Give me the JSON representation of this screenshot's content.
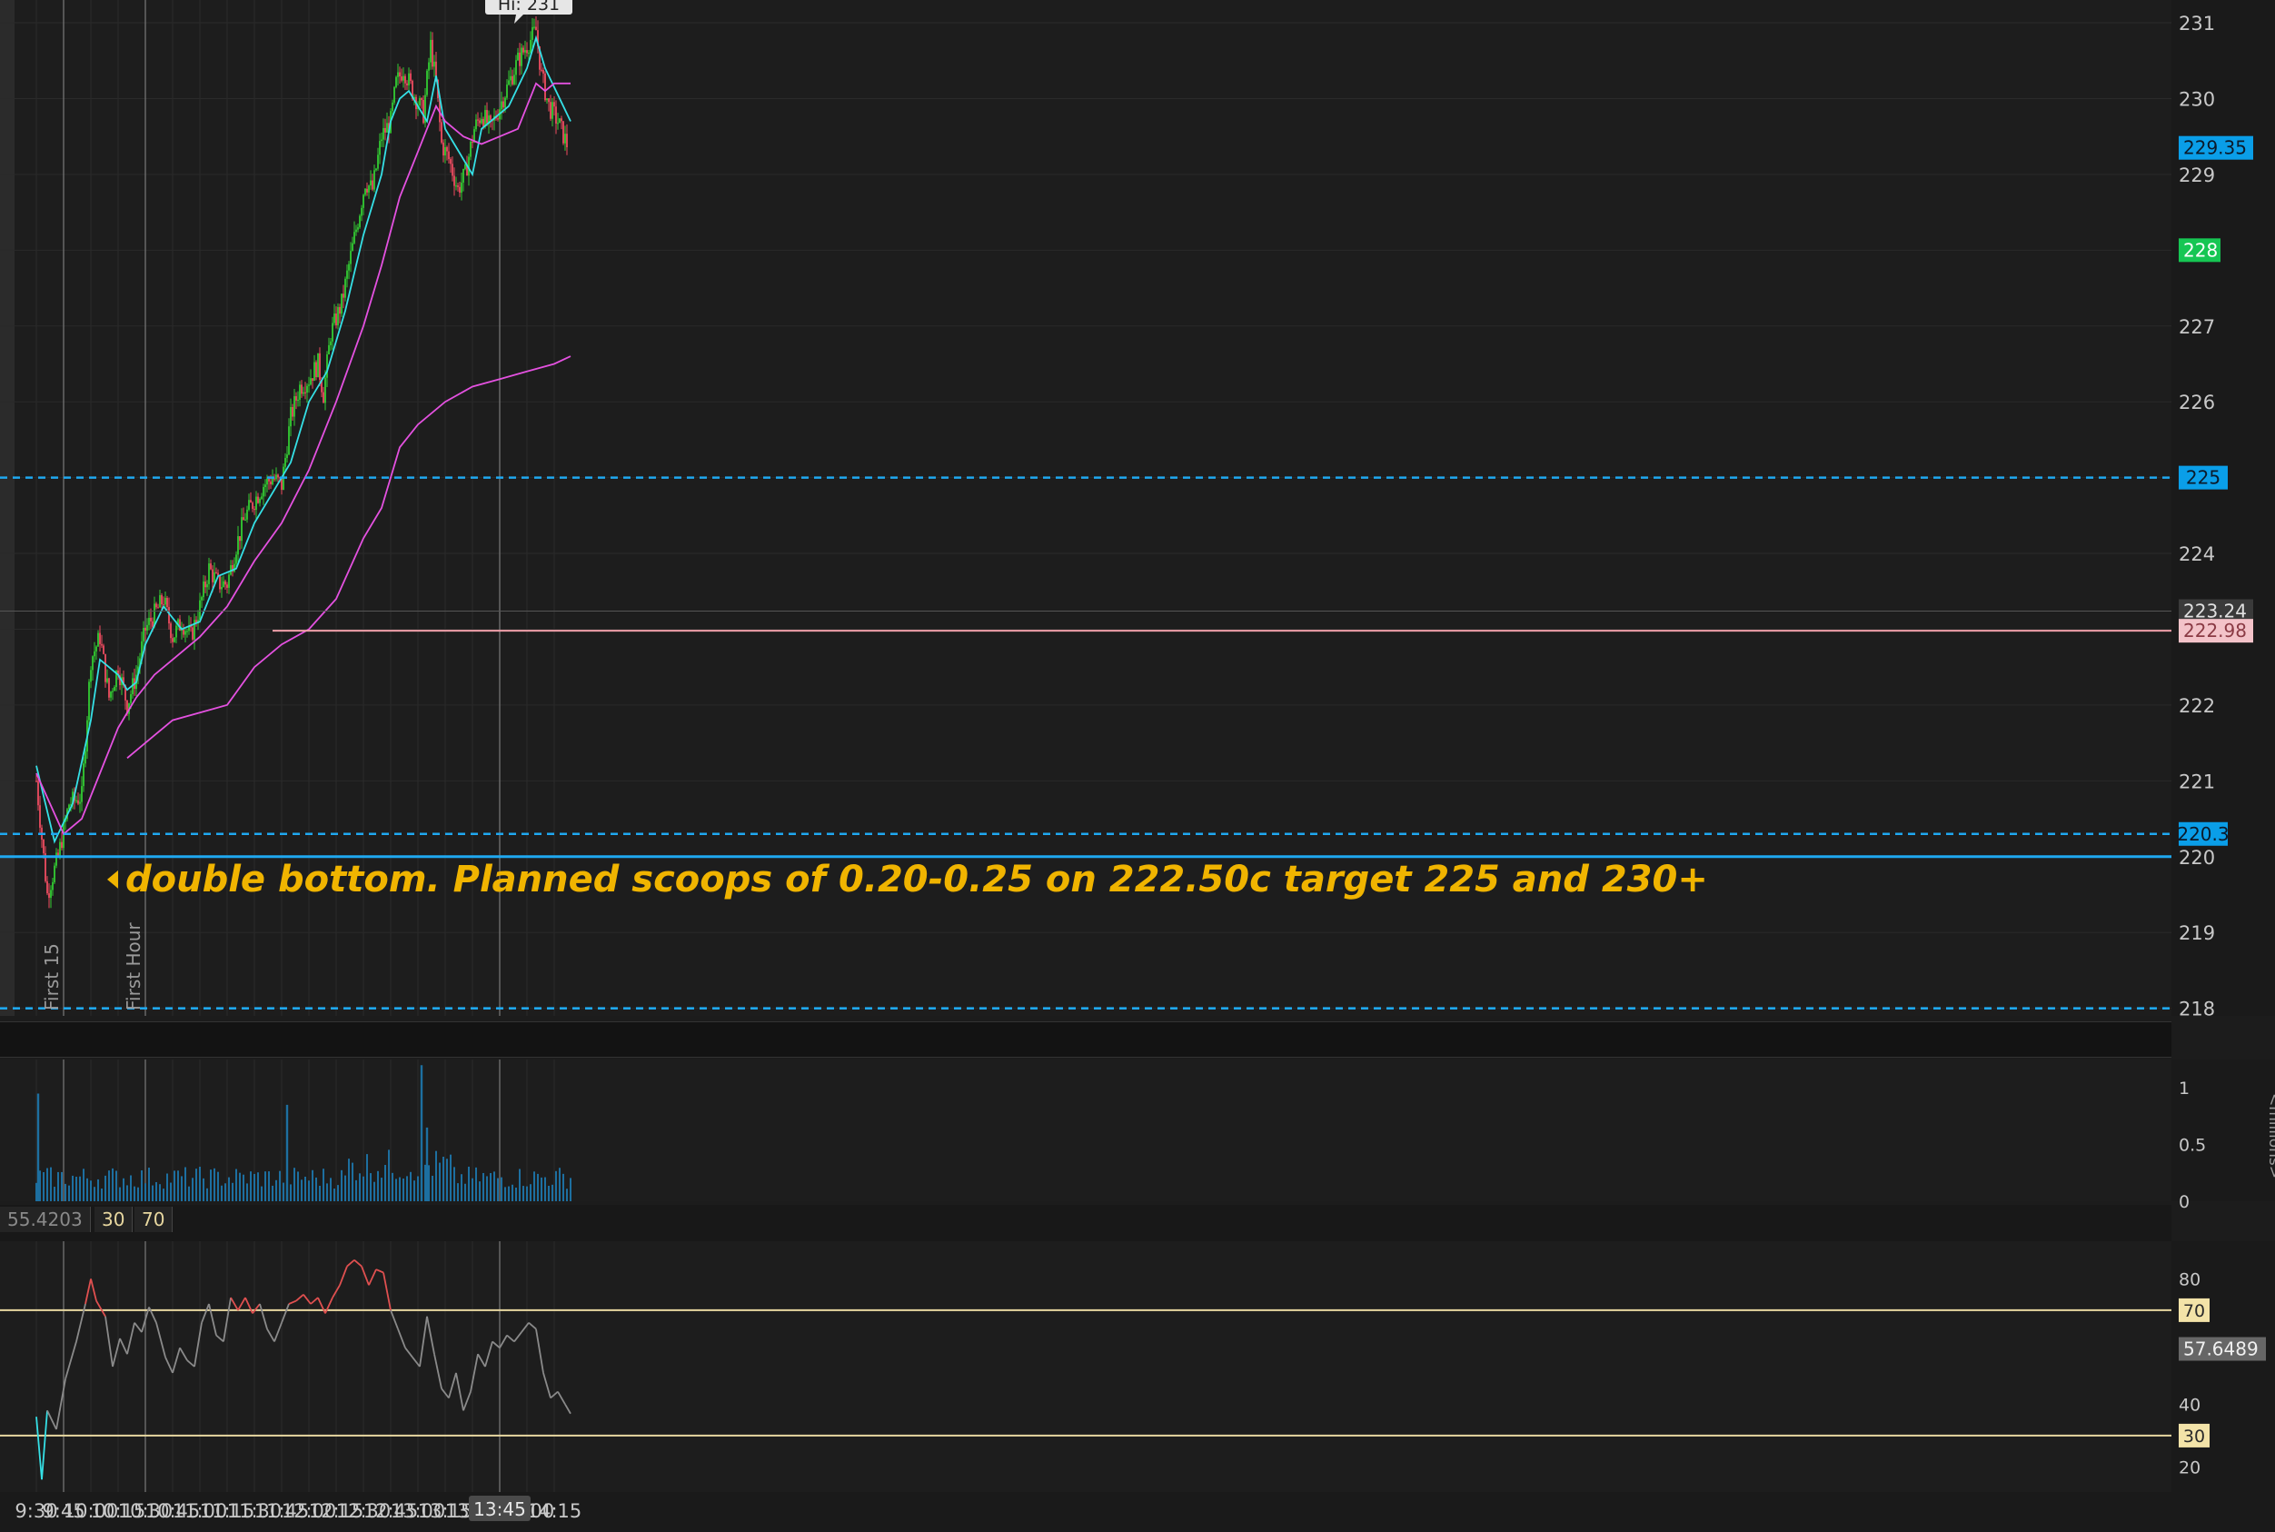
{
  "colors": {
    "background": "#1d1d1d",
    "grid": "#2a2a2a",
    "candle_up": "#33cc33",
    "candle_down": "#ee4c60",
    "ema_fast": "#35e0e6",
    "ema_mid": "#e451e0",
    "ema_slow": "#e451e0",
    "level_line": "#1fa8f0",
    "annotation": "#f0b400",
    "rsi_line": "#8a8a8a",
    "rsi_overbought": "#e05050",
    "rsi_oversold": "#35e0e6",
    "rsi_band": "#e8d8a0",
    "volume_bar": "#1d6fa0",
    "label_current": "#16c653",
    "label_pink": "#f5c0c6"
  },
  "chart_data": [
    {
      "type": "candlestick",
      "panel": "price",
      "ylim": [
        217.9,
        231.3
      ],
      "y_ticks": [
        "231",
        "230",
        "229",
        "228",
        "227",
        "226",
        "225",
        "224",
        "223",
        "222",
        "221",
        "220",
        "219",
        "218"
      ],
      "x_ticks": [
        "9:30",
        "9:45",
        "10:00",
        "10:15",
        "10:30",
        "10:45",
        "11:00",
        "11:15",
        "11:30",
        "11:45",
        "12:00",
        "12:15",
        "12:30",
        "12:45",
        "13:00",
        "13:15",
        "13:30",
        "13:45",
        "14:00",
        "14:15"
      ],
      "session_start": "9:30",
      "bar_minutes": 1,
      "close_path": [
        [
          "9:30",
          221.0
        ],
        [
          "9:36",
          219.5
        ],
        [
          "9:42",
          220.0
        ],
        [
          "9:48",
          220.7
        ],
        [
          "9:55",
          220.8
        ],
        [
          "10:00",
          222.6
        ],
        [
          "10:05",
          222.9
        ],
        [
          "10:10",
          222.1
        ],
        [
          "10:15",
          222.5
        ],
        [
          "10:20",
          222.0
        ],
        [
          "10:25",
          222.4
        ],
        [
          "10:30",
          223.0
        ],
        [
          "10:35",
          223.2
        ],
        [
          "10:40",
          223.4
        ],
        [
          "10:45",
          222.9
        ],
        [
          "10:50",
          223.1
        ],
        [
          "10:55",
          222.9
        ],
        [
          "11:00",
          223.3
        ],
        [
          "11:05",
          223.8
        ],
        [
          "11:10",
          223.6
        ],
        [
          "11:15",
          223.6
        ],
        [
          "11:20",
          224.1
        ],
        [
          "11:25",
          224.5
        ],
        [
          "11:30",
          224.7
        ],
        [
          "11:35",
          224.9
        ],
        [
          "11:40",
          225.0
        ],
        [
          "11:45",
          224.9
        ],
        [
          "11:50",
          225.8
        ],
        [
          "11:55",
          226.2
        ],
        [
          "12:00",
          226.3
        ],
        [
          "12:05",
          226.5
        ],
        [
          "12:08",
          226.1
        ],
        [
          "12:12",
          226.9
        ],
        [
          "12:18",
          227.3
        ],
        [
          "12:22",
          227.8
        ],
        [
          "12:27",
          228.4
        ],
        [
          "12:31",
          228.9
        ],
        [
          "12:35",
          228.8
        ],
        [
          "12:40",
          229.5
        ],
        [
          "12:45",
          229.7
        ],
        [
          "12:48",
          230.2
        ],
        [
          "12:52",
          230.4
        ],
        [
          "12:57",
          230.1
        ],
        [
          "13:03",
          229.8
        ],
        [
          "13:07",
          230.7
        ],
        [
          "13:10",
          230.2
        ],
        [
          "13:13",
          229.4
        ],
        [
          "13:17",
          229.2
        ],
        [
          "13:22",
          228.8
        ],
        [
          "13:26",
          229.0
        ],
        [
          "13:31",
          229.6
        ],
        [
          "13:35",
          229.8
        ],
        [
          "13:40",
          229.6
        ],
        [
          "13:45",
          229.9
        ],
        [
          "13:50",
          230.2
        ],
        [
          "13:55",
          230.5
        ],
        [
          "14:00",
          230.7
        ],
        [
          "14:05",
          230.9
        ],
        [
          "14:08",
          230.3
        ],
        [
          "14:12",
          229.9
        ],
        [
          "14:17",
          229.7
        ],
        [
          "14:22",
          229.4
        ]
      ],
      "series": [
        {
          "name": "",
          "style": "ema-fast",
          "points": [
            [
              "9:30",
              221.2
            ],
            [
              "9:40",
              220.2
            ],
            [
              "9:50",
              220.7
            ],
            [
              "10:00",
              221.8
            ],
            [
              "10:05",
              222.6
            ],
            [
              "10:10",
              222.5
            ],
            [
              "10:15",
              222.4
            ],
            [
              "10:20",
              222.2
            ],
            [
              "10:25",
              222.3
            ],
            [
              "10:30",
              222.8
            ],
            [
              "10:40",
              223.3
            ],
            [
              "10:50",
              223.0
            ],
            [
              "11:00",
              223.1
            ],
            [
              "11:10",
              223.7
            ],
            [
              "11:20",
              223.8
            ],
            [
              "11:30",
              224.4
            ],
            [
              "11:40",
              224.8
            ],
            [
              "11:50",
              225.2
            ],
            [
              "12:00",
              226.0
            ],
            [
              "12:10",
              226.4
            ],
            [
              "12:20",
              227.2
            ],
            [
              "12:30",
              228.2
            ],
            [
              "12:40",
              229.0
            ],
            [
              "12:45",
              229.7
            ],
            [
              "12:50",
              230.0
            ],
            [
              "12:55",
              230.1
            ],
            [
              "13:00",
              229.9
            ],
            [
              "13:05",
              229.7
            ],
            [
              "13:10",
              230.3
            ],
            [
              "13:15",
              229.6
            ],
            [
              "13:20",
              229.4
            ],
            [
              "13:30",
              229.0
            ],
            [
              "13:35",
              229.6
            ],
            [
              "13:40",
              229.7
            ],
            [
              "13:50",
              229.9
            ],
            [
              "14:00",
              230.4
            ],
            [
              "14:05",
              230.8
            ],
            [
              "14:10",
              230.4
            ],
            [
              "14:20",
              229.9
            ],
            [
              "14:24",
              229.7
            ]
          ]
        },
        {
          "name": "",
          "style": "ema-mid",
          "points": [
            [
              "9:30",
              221.1
            ],
            [
              "9:45",
              220.3
            ],
            [
              "9:55",
              220.5
            ],
            [
              "10:05",
              221.1
            ],
            [
              "10:15",
              221.7
            ],
            [
              "10:25",
              222.1
            ],
            [
              "10:35",
              222.4
            ],
            [
              "10:45",
              222.6
            ],
            [
              "11:00",
              222.9
            ],
            [
              "11:15",
              223.3
            ],
            [
              "11:30",
              223.9
            ],
            [
              "11:45",
              224.4
            ],
            [
              "12:00",
              225.1
            ],
            [
              "12:15",
              226.0
            ],
            [
              "12:30",
              227.0
            ],
            [
              "12:40",
              227.8
            ],
            [
              "12:50",
              228.7
            ],
            [
              "13:00",
              229.3
            ],
            [
              "13:05",
              229.6
            ],
            [
              "13:10",
              229.9
            ],
            [
              "13:15",
              229.7
            ],
            [
              "13:25",
              229.5
            ],
            [
              "13:35",
              229.4
            ],
            [
              "13:45",
              229.5
            ],
            [
              "13:55",
              229.6
            ],
            [
              "14:00",
              229.9
            ],
            [
              "14:05",
              230.2
            ],
            [
              "14:10",
              230.1
            ],
            [
              "14:15",
              230.2
            ],
            [
              "14:24",
              230.2
            ]
          ]
        },
        {
          "name": "",
          "style": "ema-slow",
          "points": [
            [
              "10:20",
              221.3
            ],
            [
              "10:30",
              221.5
            ],
            [
              "10:45",
              221.8
            ],
            [
              "11:00",
              221.9
            ],
            [
              "11:15",
              222.0
            ],
            [
              "11:30",
              222.5
            ],
            [
              "11:45",
              222.8
            ],
            [
              "12:00",
              223.0
            ],
            [
              "12:15",
              223.4
            ],
            [
              "12:30",
              224.2
            ],
            [
              "12:40",
              224.6
            ],
            [
              "12:45",
              225.0
            ],
            [
              "12:50",
              225.4
            ],
            [
              "13:00",
              225.7
            ],
            [
              "13:15",
              226.0
            ],
            [
              "13:30",
              226.2
            ],
            [
              "13:45",
              226.3
            ],
            [
              "14:00",
              226.4
            ],
            [
              "14:15",
              226.5
            ],
            [
              "14:24",
              226.6
            ]
          ]
        }
      ],
      "levels": [
        {
          "value": 225.0,
          "style": "dashed",
          "label": "225"
        },
        {
          "value": 220.3,
          "style": "dashed",
          "label": "220.3"
        },
        {
          "value": 220.0,
          "style": "solid"
        },
        {
          "value": 218.0,
          "style": "dashed"
        }
      ],
      "price_markers": [
        {
          "value": 229.35,
          "label": "229.35",
          "kind": "last"
        },
        {
          "value": 228.0,
          "label": "228",
          "kind": "alert"
        },
        {
          "value": 223.24,
          "label": "223.24",
          "kind": "crosshair"
        },
        {
          "value": 222.98,
          "label": "222.98",
          "kind": "pink"
        }
      ],
      "high_label": "Hi: 231",
      "vertical_markers": [
        {
          "time": "9:45",
          "label": "First 15"
        },
        {
          "time": "10:30",
          "label": "First Hour"
        },
        {
          "time": "13:45",
          "label": ""
        }
      ],
      "annotation": "double bottom. Planned scoops of 0.20-0.25 on 222.50c target 225 and 230+",
      "grid": true
    },
    {
      "type": "bar",
      "panel": "volume",
      "ylabel": "<millions>",
      "y_ticks": [
        "1",
        "0.5",
        "0"
      ],
      "ylim": [
        0,
        1.25
      ],
      "typical": 0.22,
      "spikes": [
        [
          "9:31",
          0.95
        ],
        [
          "11:48",
          0.85
        ],
        [
          "13:02",
          1.2
        ],
        [
          "13:05",
          0.65
        ]
      ]
    },
    {
      "type": "line",
      "panel": "rsi",
      "ylim": [
        12,
        92
      ],
      "y_ticks": [
        "80",
        "40",
        "20"
      ],
      "bands": [
        70,
        30
      ],
      "band_labels": [
        "70",
        "30"
      ],
      "last_value": "57.6489",
      "header_value": "55.4203",
      "header_bands": [
        "30",
        "70"
      ],
      "points": [
        [
          "9:30",
          36
        ],
        [
          "9:33",
          16
        ],
        [
          "9:36",
          38
        ],
        [
          "9:41",
          32
        ],
        [
          "9:46",
          48
        ],
        [
          "9:52",
          60
        ],
        [
          "9:57",
          72
        ],
        [
          "10:00",
          80
        ],
        [
          "10:03",
          73
        ],
        [
          "10:08",
          68
        ],
        [
          "10:12",
          52
        ],
        [
          "10:16",
          61
        ],
        [
          "10:20",
          56
        ],
        [
          "10:24",
          66
        ],
        [
          "10:28",
          63
        ],
        [
          "10:32",
          71
        ],
        [
          "10:36",
          66
        ],
        [
          "10:41",
          55
        ],
        [
          "10:45",
          50
        ],
        [
          "10:49",
          58
        ],
        [
          "10:53",
          54
        ],
        [
          "10:57",
          52
        ],
        [
          "11:01",
          66
        ],
        [
          "11:05",
          72
        ],
        [
          "11:09",
          62
        ],
        [
          "11:13",
          60
        ],
        [
          "11:17",
          74
        ],
        [
          "11:21",
          70
        ],
        [
          "11:25",
          74
        ],
        [
          "11:29",
          69
        ],
        [
          "11:33",
          72
        ],
        [
          "11:37",
          64
        ],
        [
          "11:41",
          60
        ],
        [
          "11:45",
          66
        ],
        [
          "11:49",
          72
        ],
        [
          "11:53",
          73
        ],
        [
          "11:57",
          75
        ],
        [
          "12:01",
          72
        ],
        [
          "12:05",
          74
        ],
        [
          "12:09",
          69
        ],
        [
          "12:13",
          74
        ],
        [
          "12:17",
          78
        ],
        [
          "12:21",
          84
        ],
        [
          "12:25",
          86
        ],
        [
          "12:29",
          84
        ],
        [
          "12:33",
          78
        ],
        [
          "12:37",
          83
        ],
        [
          "12:41",
          82
        ],
        [
          "12:45",
          70
        ],
        [
          "12:49",
          64
        ],
        [
          "12:53",
          58
        ],
        [
          "12:57",
          55
        ],
        [
          "13:01",
          52
        ],
        [
          "13:05",
          68
        ],
        [
          "13:09",
          56
        ],
        [
          "13:13",
          45
        ],
        [
          "13:17",
          42
        ],
        [
          "13:21",
          50
        ],
        [
          "13:25",
          38
        ],
        [
          "13:29",
          44
        ],
        [
          "13:33",
          56
        ],
        [
          "13:37",
          52
        ],
        [
          "13:41",
          60
        ],
        [
          "13:45",
          58
        ],
        [
          "13:49",
          62
        ],
        [
          "13:53",
          60
        ],
        [
          "13:57",
          63
        ],
        [
          "14:01",
          66
        ],
        [
          "14:05",
          64
        ],
        [
          "14:09",
          50
        ],
        [
          "14:13",
          42
        ],
        [
          "14:17",
          44
        ],
        [
          "14:21",
          40
        ],
        [
          "14:24",
          37
        ]
      ]
    }
  ]
}
